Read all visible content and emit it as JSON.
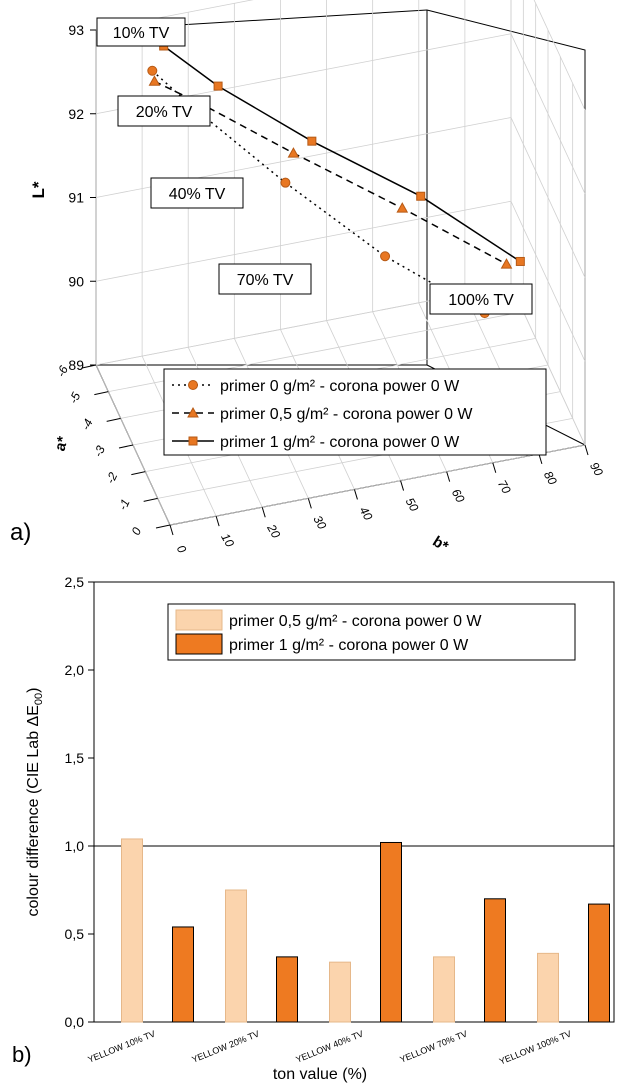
{
  "panels": {
    "a_label": "a)",
    "b_label": "b)"
  },
  "colors": {
    "primer0": "#e87722",
    "primer05_line": "#e87722",
    "primer1": "#e87722",
    "bar_light": "#fbd4ad",
    "bar_dark": "#ee7a21",
    "axis": "#000000",
    "grid": "#cccccc"
  },
  "chart_data": [
    {
      "type": "line3d",
      "title": "",
      "xlabel": "b*",
      "ylabel": "a*",
      "zlabel": "L*",
      "x_axis": {
        "label": "b*",
        "range": [
          0,
          90
        ],
        "ticks": [
          "0",
          "10",
          "20",
          "30",
          "40",
          "50",
          "60",
          "70",
          "80",
          "90"
        ]
      },
      "y_axis": {
        "label": "a*",
        "range": [
          -6,
          0
        ],
        "ticks": [
          "0",
          "-1",
          "-2",
          "-3",
          "-4",
          "-5",
          "-6"
        ]
      },
      "z_axis": {
        "label": "L*",
        "range": [
          89,
          93
        ],
        "ticks": [
          "89",
          "90",
          "91",
          "92",
          "93"
        ]
      },
      "annotations": [
        "10% TV",
        "20% TV",
        "40% TV",
        "70% TV",
        "100% TV"
      ],
      "legend": "bottom-center",
      "series": [
        {
          "name": "primer 0 g/m² - corona power 0 W",
          "marker": "circle",
          "line": "dotted",
          "points": [
            {
              "b": 9,
              "a": -4.8,
              "L": 92.8
            },
            {
              "b": 18,
              "a": -4.6,
              "L": 92.3
            },
            {
              "b": 36,
              "a": -4.1,
              "L": 91.4
            },
            {
              "b": 56,
              "a": -3.5,
              "L": 90.5
            },
            {
              "b": 76,
              "a": -2.9,
              "L": 89.8
            }
          ]
        },
        {
          "name": "primer 0,5 g/m² - corona power 0 W",
          "marker": "triangle",
          "line": "dashed",
          "points": [
            {
              "b": 10,
              "a": -5.0,
              "L": 92.6
            },
            {
              "b": 20,
              "a": -4.7,
              "L": 92.3
            },
            {
              "b": 38,
              "a": -4.2,
              "L": 91.7
            },
            {
              "b": 60,
              "a": -3.6,
              "L": 91.0
            },
            {
              "b": 81,
              "a": -3.0,
              "L": 90.3
            }
          ]
        },
        {
          "name": "primer 1 g/m² - corona power 0 W",
          "marker": "square",
          "line": "solid",
          "points": [
            {
              "b": 12,
              "a": -5.0,
              "L": 93.0
            },
            {
              "b": 23,
              "a": -4.7,
              "L": 92.5
            },
            {
              "b": 42,
              "a": -4.2,
              "L": 91.8
            },
            {
              "b": 64,
              "a": -3.6,
              "L": 91.1
            },
            {
              "b": 84,
              "a": -3.0,
              "L": 90.3
            }
          ]
        }
      ]
    },
    {
      "type": "bar",
      "title": "",
      "xlabel": "ton value (%)",
      "ylabel": "colour difference (CIE Lab ΔE",
      "ylabel_sub": "00",
      "ylabel_close": ")",
      "ylim": [
        0,
        2.5
      ],
      "yticks": [
        "0,0",
        "0,5",
        "1,0",
        "1,5",
        "2,0",
        "2,5"
      ],
      "reference_line": 1.0,
      "categories": [
        "YELLOW 10% TV",
        "YELLOW 20% TV",
        "YELLOW 40% TV",
        "YELLOW 70% TV",
        "YELLOW 100% TV"
      ],
      "legend": "top-right",
      "series": [
        {
          "name": "primer 0,5 g/m² - corona power 0 W",
          "values": [
            1.04,
            0.75,
            0.34,
            0.37,
            0.39
          ]
        },
        {
          "name": "primer 1 g/m² - corona power 0 W",
          "values": [
            0.54,
            0.37,
            1.02,
            0.7,
            0.67
          ]
        }
      ]
    }
  ]
}
